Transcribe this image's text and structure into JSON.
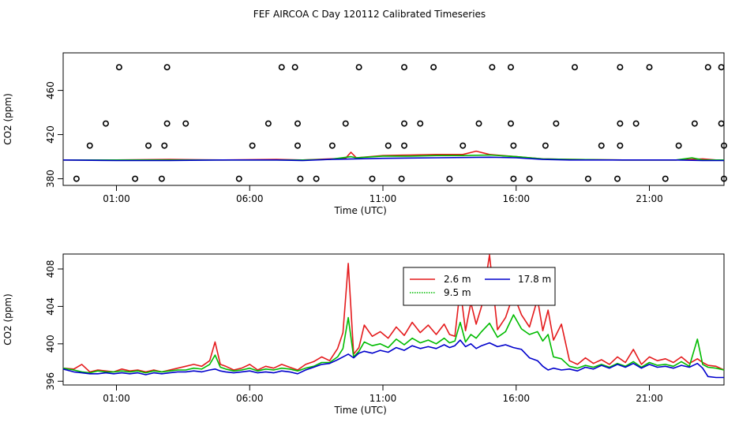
{
  "title": "FEF AIRCOA C  Day 120112  Calibrated Timeseries",
  "colors": {
    "red": "#e41a1c",
    "green": "#00bb00",
    "blue": "#0000cc"
  },
  "chart_data": [
    {
      "type": "scatter+line",
      "name": "top-panel",
      "xlabel": "Time (UTC)",
      "ylabel": "CO2 (ppm)",
      "x_unit": "hours UTC",
      "xlim": [
        -1,
        23.8
      ],
      "ylim": [
        374,
        494
      ],
      "x_ticks": [
        1,
        6,
        11,
        16,
        21
      ],
      "x_tick_labels": [
        "01:00",
        "06:00",
        "11:00",
        "16:00",
        "21:00"
      ],
      "y_ticks": [
        380,
        420,
        460
      ],
      "y_tick_labels": [
        "380",
        "420",
        "460"
      ],
      "grid": false,
      "points": [
        {
          "x": 1.1,
          "y": 481
        },
        {
          "x": 2.9,
          "y": 481
        },
        {
          "x": 7.2,
          "y": 481
        },
        {
          "x": 7.7,
          "y": 481
        },
        {
          "x": 10.1,
          "y": 481
        },
        {
          "x": 11.8,
          "y": 481
        },
        {
          "x": 12.9,
          "y": 481
        },
        {
          "x": 15.1,
          "y": 481
        },
        {
          "x": 15.8,
          "y": 481
        },
        {
          "x": 18.2,
          "y": 481
        },
        {
          "x": 19.9,
          "y": 481
        },
        {
          "x": 21.0,
          "y": 481
        },
        {
          "x": 23.2,
          "y": 481
        },
        {
          "x": 23.7,
          "y": 481
        },
        {
          "x": 0.6,
          "y": 430
        },
        {
          "x": 2.9,
          "y": 430
        },
        {
          "x": 3.6,
          "y": 430
        },
        {
          "x": 6.7,
          "y": 430
        },
        {
          "x": 7.8,
          "y": 430
        },
        {
          "x": 9.6,
          "y": 430
        },
        {
          "x": 11.8,
          "y": 430
        },
        {
          "x": 12.4,
          "y": 430
        },
        {
          "x": 14.6,
          "y": 430
        },
        {
          "x": 15.8,
          "y": 430
        },
        {
          "x": 17.5,
          "y": 430
        },
        {
          "x": 19.9,
          "y": 430
        },
        {
          "x": 20.5,
          "y": 430
        },
        {
          "x": 22.7,
          "y": 430
        },
        {
          "x": 23.7,
          "y": 430
        },
        {
          "x": 0.0,
          "y": 410
        },
        {
          "x": 2.2,
          "y": 410
        },
        {
          "x": 2.8,
          "y": 410
        },
        {
          "x": 6.1,
          "y": 410
        },
        {
          "x": 7.8,
          "y": 410
        },
        {
          "x": 9.1,
          "y": 410
        },
        {
          "x": 11.2,
          "y": 410
        },
        {
          "x": 11.8,
          "y": 410
        },
        {
          "x": 14.0,
          "y": 410
        },
        {
          "x": 15.9,
          "y": 410
        },
        {
          "x": 17.1,
          "y": 410
        },
        {
          "x": 19.2,
          "y": 410
        },
        {
          "x": 19.9,
          "y": 410
        },
        {
          "x": 22.1,
          "y": 410
        },
        {
          "x": 23.8,
          "y": 410
        },
        {
          "x": -0.5,
          "y": 380
        },
        {
          "x": 1.7,
          "y": 380
        },
        {
          "x": 2.7,
          "y": 380
        },
        {
          "x": 5.6,
          "y": 380
        },
        {
          "x": 7.9,
          "y": 380
        },
        {
          "x": 8.5,
          "y": 380
        },
        {
          "x": 10.6,
          "y": 380
        },
        {
          "x": 11.7,
          "y": 380
        },
        {
          "x": 13.5,
          "y": 380
        },
        {
          "x": 15.9,
          "y": 380
        },
        {
          "x": 16.5,
          "y": 380
        },
        {
          "x": 18.7,
          "y": 380
        },
        {
          "x": 19.8,
          "y": 380
        },
        {
          "x": 21.6,
          "y": 380
        },
        {
          "x": 23.8,
          "y": 380
        }
      ],
      "series": [
        {
          "name": "2.6 m",
          "color": "red",
          "x": [
            -1,
            1,
            3,
            5,
            7,
            8,
            9,
            9.6,
            9.8,
            10,
            11,
            12,
            13,
            14,
            14.5,
            15,
            16,
            17,
            18,
            20,
            22,
            23,
            23.5,
            23.8
          ],
          "y": [
            397,
            397,
            397.5,
            397,
            397.5,
            397,
            398,
            398.5,
            404,
            399,
            401,
            401.5,
            402,
            402,
            405,
            402,
            400,
            398,
            397.5,
            397,
            397,
            398,
            397,
            397
          ]
        },
        {
          "name": "9.5 m",
          "color": "green",
          "x": [
            -1,
            1,
            3,
            5,
            7,
            8,
            9,
            9.8,
            10,
            11,
            12,
            13,
            14,
            15,
            16,
            17,
            18,
            20,
            22,
            22.6,
            23,
            23.8
          ],
          "y": [
            397,
            397,
            397,
            397,
            397,
            397,
            397.5,
            400,
            399,
            400.5,
            400.5,
            401,
            401,
            401.5,
            400,
            398,
            397.5,
            397,
            397,
            399,
            397,
            397
          ]
        },
        {
          "name": "17.8 m",
          "color": "blue",
          "x": [
            -1,
            1,
            3,
            5,
            7,
            8,
            9,
            11,
            13,
            15,
            16,
            17,
            18,
            20,
            22,
            23,
            23.8
          ],
          "y": [
            397,
            396.5,
            396.5,
            397,
            397,
            396.5,
            397.5,
            398.5,
            399,
            399.5,
            399,
            397.5,
            397,
            397,
            397,
            396.5,
            396.5
          ]
        }
      ]
    },
    {
      "type": "line",
      "name": "bottom-panel",
      "xlabel": "Time (UTC)",
      "ylabel": "CO2 (ppm)",
      "x_unit": "hours UTC",
      "xlim": [
        -1,
        23.8
      ],
      "ylim": [
        395.6,
        409.6
      ],
      "x_ticks": [
        1,
        6,
        11,
        16,
        21
      ],
      "x_tick_labels": [
        "01:00",
        "06:00",
        "11:00",
        "16:00",
        "21:00"
      ],
      "y_ticks": [
        396,
        400,
        404,
        408
      ],
      "y_tick_labels": [
        "396",
        "400",
        "404",
        "408"
      ],
      "grid": false,
      "legend": {
        "placement": "top-center",
        "entries": [
          {
            "label": "2.6 m",
            "color": "red",
            "dash": "solid"
          },
          {
            "label": "9.5 m",
            "color": "green",
            "dash": "dotted"
          },
          {
            "label": "17.8 m",
            "color": "blue",
            "dash": "solid"
          }
        ]
      },
      "series": [
        {
          "name": "2.6 m",
          "color": "red",
          "x": [
            -1,
            -0.6,
            -0.3,
            0,
            0.3,
            0.6,
            0.9,
            1.2,
            1.5,
            1.8,
            2.1,
            2.4,
            2.7,
            3.0,
            3.3,
            3.6,
            3.9,
            4.2,
            4.5,
            4.7,
            4.9,
            5.1,
            5.4,
            5.7,
            6.0,
            6.3,
            6.6,
            6.9,
            7.2,
            7.5,
            7.8,
            8.1,
            8.4,
            8.7,
            9.0,
            9.3,
            9.5,
            9.7,
            9.9,
            10.1,
            10.3,
            10.6,
            10.9,
            11.2,
            11.5,
            11.8,
            12.1,
            12.4,
            12.7,
            13.0,
            13.3,
            13.5,
            13.7,
            13.9,
            14.1,
            14.3,
            14.5,
            14.7,
            15.0,
            15.3,
            15.6,
            15.9,
            16.2,
            16.5,
            16.8,
            17.0,
            17.2,
            17.4,
            17.7,
            18.0,
            18.3,
            18.6,
            18.9,
            19.2,
            19.5,
            19.8,
            20.1,
            20.4,
            20.7,
            21.0,
            21.3,
            21.6,
            21.9,
            22.2,
            22.5,
            22.8,
            23.0,
            23.2,
            23.5,
            23.8
          ],
          "y": [
            397.4,
            397.3,
            397.8,
            397.0,
            397.2,
            397.1,
            397.0,
            397.3,
            397.1,
            397.2,
            397.0,
            397.2,
            397.0,
            397.2,
            397.4,
            397.6,
            397.8,
            397.6,
            398.2,
            400.2,
            397.8,
            397.6,
            397.2,
            397.4,
            397.8,
            397.2,
            397.6,
            397.4,
            397.8,
            397.5,
            397.2,
            397.8,
            398.1,
            398.6,
            398.2,
            399.5,
            401.2,
            408.6,
            398.9,
            399.6,
            402.0,
            400.8,
            401.3,
            400.6,
            401.8,
            400.9,
            402.3,
            401.2,
            402.0,
            401.0,
            402.1,
            401.0,
            400.8,
            405.9,
            401.4,
            404.4,
            402.1,
            404.0,
            409.5,
            401.5,
            402.8,
            405.3,
            403.1,
            401.8,
            404.8,
            401.4,
            403.6,
            400.4,
            402.1,
            398.2,
            397.8,
            398.5,
            397.9,
            398.3,
            397.8,
            398.6,
            398.0,
            399.4,
            397.8,
            398.6,
            398.2,
            398.4,
            398.0,
            398.6,
            397.9,
            398.4,
            398.0,
            397.7,
            397.6,
            397.2
          ]
        },
        {
          "name": "9.5 m",
          "color": "green",
          "x": [
            -1,
            -0.6,
            -0.3,
            0,
            0.3,
            0.6,
            0.9,
            1.2,
            1.5,
            1.8,
            2.1,
            2.4,
            2.7,
            3.0,
            3.3,
            3.6,
            3.9,
            4.2,
            4.5,
            4.7,
            4.9,
            5.1,
            5.4,
            5.7,
            6.0,
            6.3,
            6.6,
            6.9,
            7.2,
            7.5,
            7.8,
            8.1,
            8.4,
            8.7,
            9.0,
            9.3,
            9.5,
            9.7,
            9.9,
            10.1,
            10.3,
            10.6,
            10.9,
            11.2,
            11.5,
            11.8,
            12.1,
            12.4,
            12.7,
            13.0,
            13.3,
            13.5,
            13.7,
            13.9,
            14.1,
            14.3,
            14.5,
            14.7,
            15.0,
            15.3,
            15.6,
            15.9,
            16.2,
            16.5,
            16.8,
            17.0,
            17.2,
            17.4,
            17.7,
            18.0,
            18.3,
            18.6,
            18.9,
            19.2,
            19.5,
            19.8,
            20.1,
            20.4,
            20.7,
            21.0,
            21.3,
            21.6,
            21.9,
            22.2,
            22.5,
            22.8,
            23.0,
            23.2,
            23.5,
            23.8
          ],
          "y": [
            397.4,
            397.2,
            397.0,
            396.9,
            397.1,
            397.0,
            397.0,
            397.1,
            397.0,
            397.1,
            396.9,
            397.1,
            397.0,
            397.1,
            397.2,
            397.2,
            397.4,
            397.3,
            397.8,
            398.8,
            397.5,
            397.3,
            397.1,
            397.2,
            397.4,
            397.1,
            397.3,
            397.2,
            397.4,
            397.3,
            397.1,
            397.4,
            397.6,
            398.0,
            398.0,
            398.6,
            399.5,
            402.8,
            398.6,
            399.2,
            400.2,
            399.8,
            400.0,
            399.6,
            400.5,
            399.9,
            400.6,
            400.1,
            400.4,
            400.0,
            400.6,
            400.1,
            400.3,
            402.3,
            400.2,
            401.0,
            400.6,
            401.3,
            402.2,
            400.7,
            401.3,
            403.1,
            401.6,
            401.0,
            401.3,
            400.3,
            401.0,
            398.6,
            398.4,
            397.6,
            397.4,
            397.7,
            397.5,
            397.8,
            397.5,
            397.9,
            397.6,
            398.1,
            397.5,
            398.0,
            397.7,
            397.8,
            397.6,
            398.1,
            397.6,
            400.5,
            397.8,
            397.5,
            397.4,
            397.2
          ]
        },
        {
          "name": "17.8 m",
          "color": "blue",
          "x": [
            -1,
            -0.6,
            -0.3,
            0,
            0.3,
            0.6,
            0.9,
            1.2,
            1.5,
            1.8,
            2.1,
            2.4,
            2.7,
            3.0,
            3.3,
            3.6,
            3.9,
            4.2,
            4.5,
            4.7,
            4.9,
            5.1,
            5.4,
            5.7,
            6.0,
            6.3,
            6.6,
            6.9,
            7.2,
            7.5,
            7.8,
            8.1,
            8.4,
            8.7,
            9.0,
            9.3,
            9.5,
            9.7,
            9.9,
            10.1,
            10.3,
            10.6,
            10.9,
            11.2,
            11.5,
            11.8,
            12.1,
            12.4,
            12.7,
            13.0,
            13.3,
            13.5,
            13.7,
            13.9,
            14.1,
            14.3,
            14.5,
            14.7,
            15.0,
            15.3,
            15.6,
            15.9,
            16.2,
            16.5,
            16.8,
            17.0,
            17.2,
            17.4,
            17.7,
            18.0,
            18.3,
            18.6,
            18.9,
            19.2,
            19.5,
            19.8,
            20.1,
            20.4,
            20.7,
            21.0,
            21.3,
            21.6,
            21.9,
            22.2,
            22.5,
            22.8,
            23.0,
            23.2,
            23.5,
            23.8
          ],
          "y": [
            397.3,
            397.0,
            396.9,
            396.8,
            396.8,
            396.9,
            396.8,
            396.9,
            396.8,
            396.9,
            396.7,
            396.9,
            396.8,
            396.9,
            397.0,
            397.0,
            397.1,
            397.0,
            397.2,
            397.3,
            397.1,
            397.0,
            396.9,
            397.0,
            397.1,
            396.9,
            397.0,
            396.9,
            397.1,
            397.0,
            396.8,
            397.2,
            397.5,
            397.8,
            397.9,
            398.3,
            398.6,
            398.9,
            398.5,
            399.0,
            399.2,
            399.0,
            399.3,
            399.1,
            399.6,
            399.3,
            399.8,
            399.5,
            399.7,
            399.5,
            399.9,
            399.6,
            399.8,
            400.4,
            399.7,
            400.0,
            399.5,
            399.8,
            400.1,
            399.7,
            399.9,
            399.6,
            399.4,
            398.5,
            398.2,
            397.6,
            397.2,
            397.4,
            397.2,
            397.3,
            397.1,
            397.5,
            397.3,
            397.7,
            397.4,
            397.8,
            397.5,
            397.9,
            397.4,
            397.8,
            397.5,
            397.6,
            397.4,
            397.7,
            397.5,
            397.9,
            397.4,
            396.5,
            396.4,
            396.4
          ]
        }
      ]
    }
  ]
}
